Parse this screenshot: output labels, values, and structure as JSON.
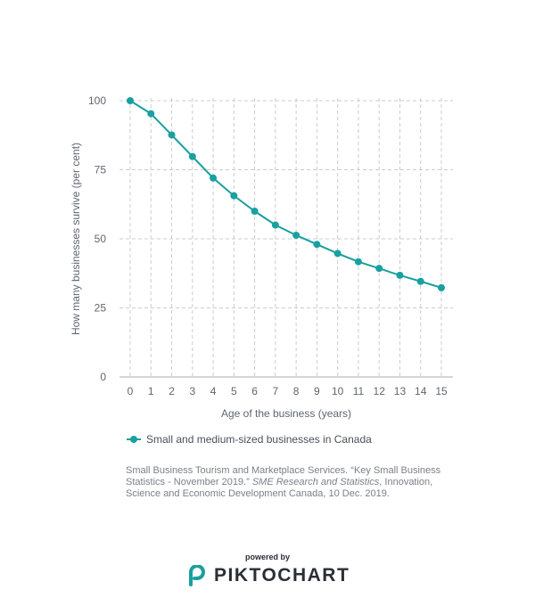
{
  "chart_data": {
    "type": "line",
    "xlabel": "Age of the business (years)",
    "ylabel": "How many businesses survive (per cent)",
    "x": [
      0,
      1,
      2,
      3,
      4,
      5,
      6,
      7,
      8,
      9,
      10,
      11,
      12,
      13,
      14,
      15
    ],
    "xlim": [
      0,
      15
    ],
    "ylim": [
      0,
      100
    ],
    "yticks": [
      0,
      25,
      50,
      75,
      100
    ],
    "grid": true,
    "legend_position": "bottom-left",
    "series": [
      {
        "name": "Small and medium-sized businesses in Canada",
        "color": "#19a0a0",
        "values": [
          100,
          95.3,
          87.6,
          79.8,
          72,
          65.6,
          60,
          55,
          51.3,
          48,
          44.7,
          41.7,
          39.3,
          36.8,
          34.6,
          32.3
        ]
      }
    ]
  },
  "source": {
    "part1": "Small Business Tourism and Marketplace Services. “Key Small Business Statistics - November 2019.” ",
    "italic": "SME Research and Statistics",
    "part2": ", Innovation, Science and Economic Development Canada, 10 Dec. 2019."
  },
  "footer": {
    "powered_by": "powered by",
    "brand": "PIKTOCHART",
    "brand_color": "#2a2e35",
    "logo_color": "#19a0a0"
  }
}
